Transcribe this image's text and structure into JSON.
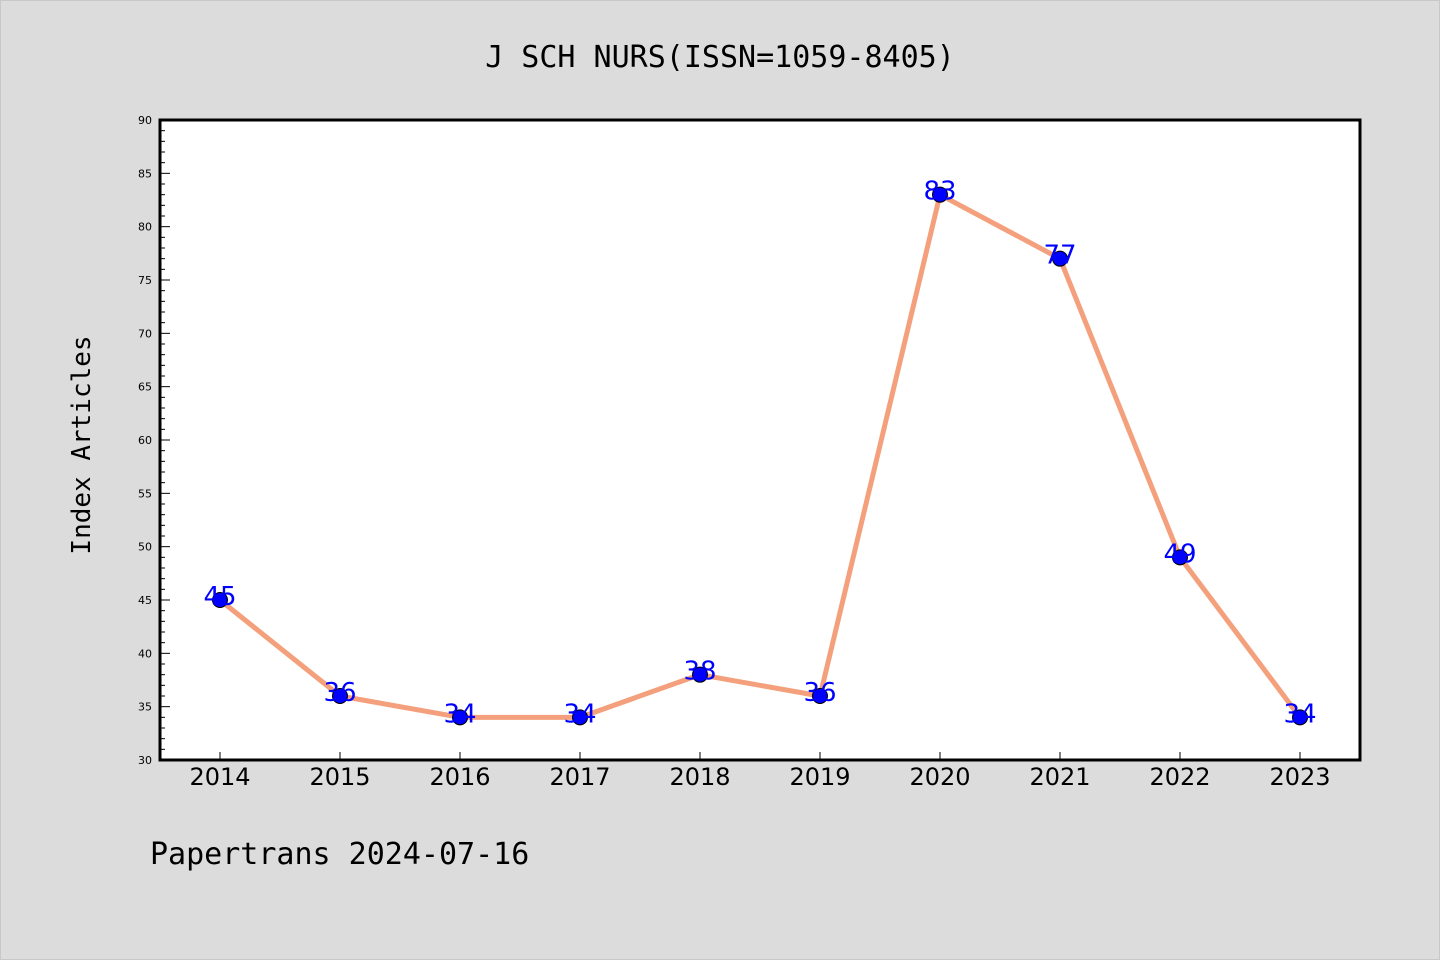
{
  "chart_data": {
    "type": "line",
    "title": "J SCH NURS(ISSN=1059-8405)",
    "ylabel": "Index Articles",
    "xlabel": "",
    "categories": [
      "2014",
      "2015",
      "2016",
      "2017",
      "2018",
      "2019",
      "2020",
      "2021",
      "2022",
      "2023"
    ],
    "values": [
      45,
      36,
      34,
      34,
      38,
      36,
      83,
      77,
      49,
      34
    ],
    "ylim": [
      30,
      90
    ],
    "ymajor_ticks": [
      30,
      35,
      40,
      45,
      50,
      55,
      60,
      65,
      70,
      75,
      80,
      85,
      90
    ],
    "data_labels": [
      "45",
      "36",
      "34",
      "34",
      "38",
      "36",
      "83",
      "77",
      "49",
      "34"
    ],
    "grid": false,
    "line_color": "#f4a07c",
    "marker_color": "#0000ff",
    "label_color": "#0000ff"
  },
  "footer": {
    "text": "Papertrans 2024-07-16"
  },
  "colors": {
    "background": "#dcdcdc",
    "plot_background": "#ffffff"
  }
}
